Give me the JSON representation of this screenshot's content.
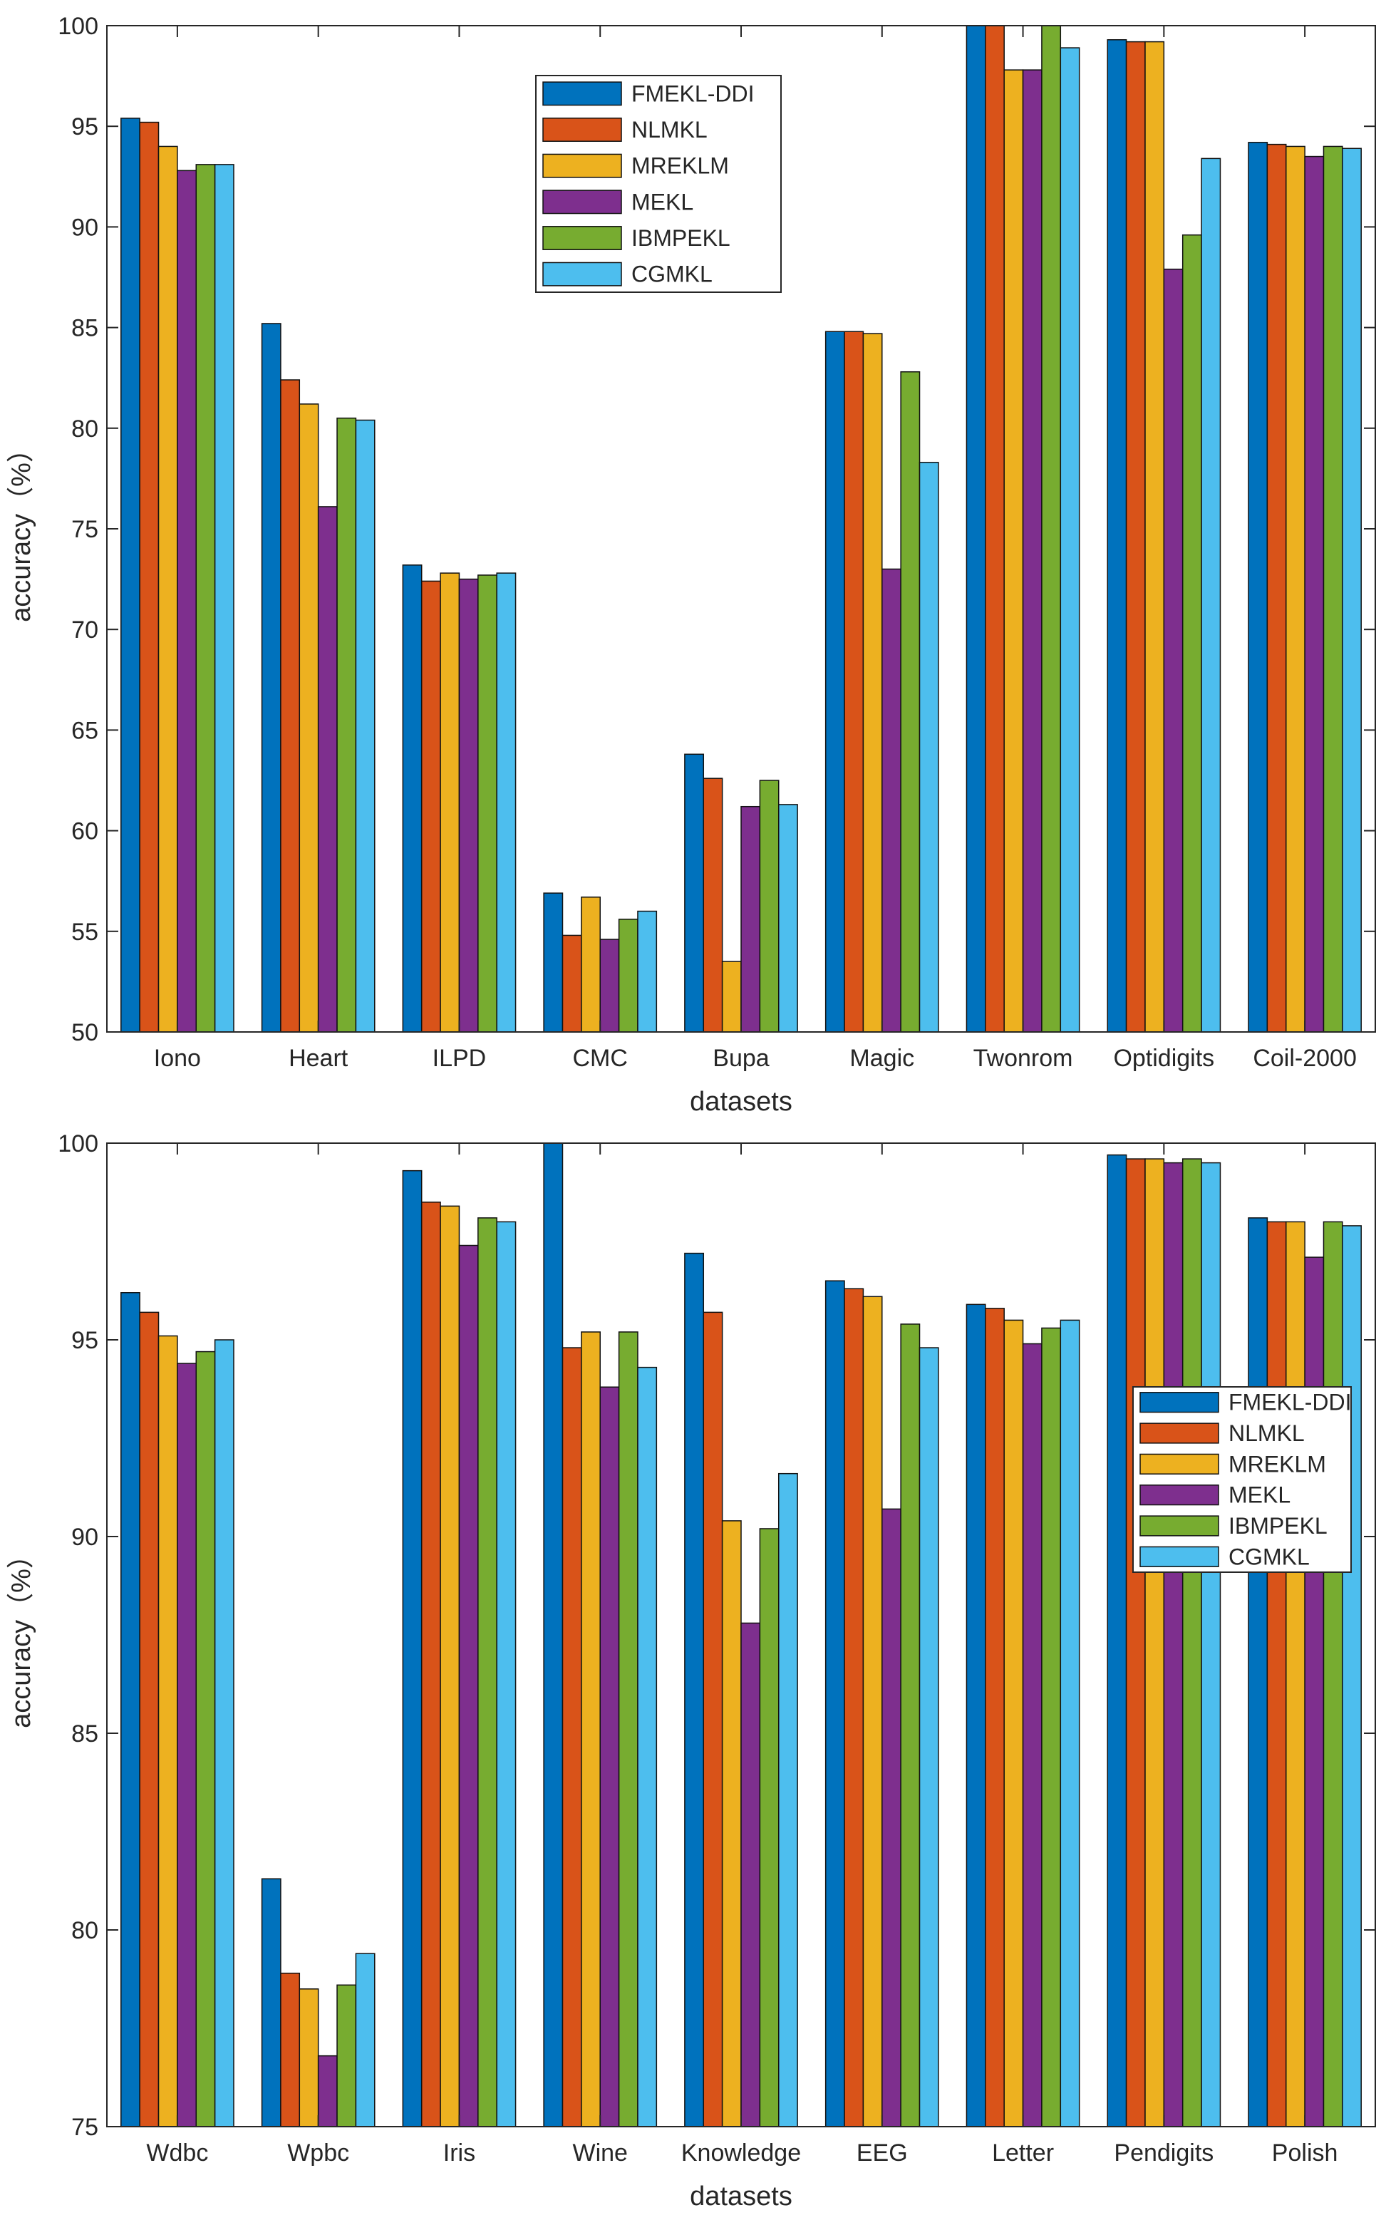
{
  "colors": [
    "#0072BD",
    "#D95319",
    "#EDB120",
    "#7E2F8E",
    "#77AC30",
    "#4DBEEE"
  ],
  "chart_data": [
    {
      "type": "bar",
      "title": "",
      "xlabel": "datasets",
      "ylabel": "accuracy（%）",
      "ylim": [
        50,
        100
      ],
      "yticks": [
        50,
        55,
        60,
        65,
        70,
        75,
        80,
        85,
        90,
        95,
        100
      ],
      "grid": false,
      "legend_position": "top-center",
      "categories": [
        "Iono",
        "Heart",
        "ILPD",
        "CMC",
        "Bupa",
        "Magic",
        "Twonrom",
        "Optidigits",
        "Coil-2000"
      ],
      "series": [
        {
          "name": "FMEKL-DDI",
          "values": [
            95.4,
            85.2,
            73.2,
            56.9,
            63.8,
            84.8,
            100.0,
            99.3,
            94.2
          ]
        },
        {
          "name": "NLMKL",
          "values": [
            95.2,
            82.4,
            72.4,
            54.8,
            62.6,
            84.8,
            100.0,
            99.2,
            94.1
          ]
        },
        {
          "name": "MREKLM",
          "values": [
            94.0,
            81.2,
            72.8,
            56.7,
            53.5,
            84.7,
            97.8,
            99.2,
            94.0
          ]
        },
        {
          "name": "MEKL",
          "values": [
            92.8,
            76.1,
            72.5,
            54.6,
            61.2,
            73.0,
            97.8,
            87.9,
            93.5
          ]
        },
        {
          "name": "IBMPEKL",
          "values": [
            93.1,
            80.5,
            72.7,
            55.6,
            62.5,
            82.8,
            100.0,
            89.6,
            94.0
          ]
        },
        {
          "name": "CGMKL",
          "values": [
            93.1,
            80.4,
            72.8,
            56.0,
            61.3,
            78.3,
            98.9,
            93.4,
            93.9
          ]
        }
      ]
    },
    {
      "type": "bar",
      "title": "",
      "xlabel": "datasets",
      "ylabel": "accuracy（%）",
      "ylim": [
        75,
        100
      ],
      "yticks": [
        75,
        80,
        85,
        90,
        95,
        100
      ],
      "grid": false,
      "legend_position": "right",
      "categories": [
        "Wdbc",
        "Wpbc",
        "Iris",
        "Wine",
        "Knowledge",
        "EEG",
        "Letter",
        "Pendigits",
        "Polish"
      ],
      "series": [
        {
          "name": "FMEKL-DDI",
          "values": [
            96.2,
            81.3,
            99.3,
            100.0,
            97.2,
            96.5,
            95.9,
            99.7,
            98.1
          ]
        },
        {
          "name": "NLMKL",
          "values": [
            95.7,
            78.9,
            98.5,
            94.8,
            95.7,
            96.3,
            95.8,
            99.6,
            98.0
          ]
        },
        {
          "name": "MREKLM",
          "values": [
            95.1,
            78.5,
            98.4,
            95.2,
            90.4,
            96.1,
            95.5,
            99.6,
            98.0
          ]
        },
        {
          "name": "MEKL",
          "values": [
            94.4,
            76.8,
            97.4,
            93.8,
            87.8,
            90.7,
            94.9,
            99.5,
            97.1
          ]
        },
        {
          "name": "IBMPEKL",
          "values": [
            94.7,
            78.6,
            98.1,
            95.2,
            90.2,
            95.4,
            95.3,
            99.6,
            98.0
          ]
        },
        {
          "name": "CGMKL",
          "values": [
            95.0,
            79.4,
            98.0,
            94.3,
            91.6,
            94.8,
            95.5,
            99.5,
            97.9
          ]
        }
      ]
    }
  ]
}
